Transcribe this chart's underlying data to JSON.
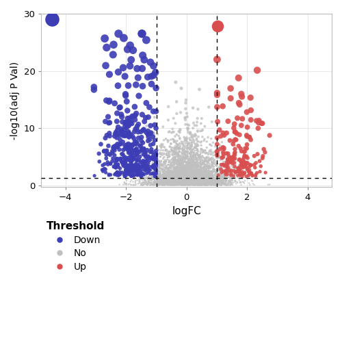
{
  "title": "",
  "xlabel": "logFC",
  "ylabel": "-log10(adj P Val)",
  "xlim": [
    -4.8,
    4.8
  ],
  "ylim": [
    -0.3,
    30
  ],
  "xticks": [
    -4,
    -2,
    0,
    2,
    4
  ],
  "yticks": [
    0,
    10,
    20,
    30
  ],
  "vline1": -1,
  "vline2": 1,
  "hline": 1.3,
  "color_down": "#3d3db5",
  "color_no": "#c0c0c0",
  "color_up": "#d94f4f",
  "legend_title": "Threshold",
  "legend_labels": [
    "Down",
    "No",
    "Up"
  ],
  "seed": 42,
  "n_no": 5000,
  "n_down": 500,
  "n_up": 200,
  "background_color": "#ffffff",
  "grid_color": "#e8e8e8",
  "outlier_blue_x": -4.45,
  "outlier_blue_y": 29.0,
  "outlier_red_x": 1.02,
  "outlier_red_y": 27.8
}
